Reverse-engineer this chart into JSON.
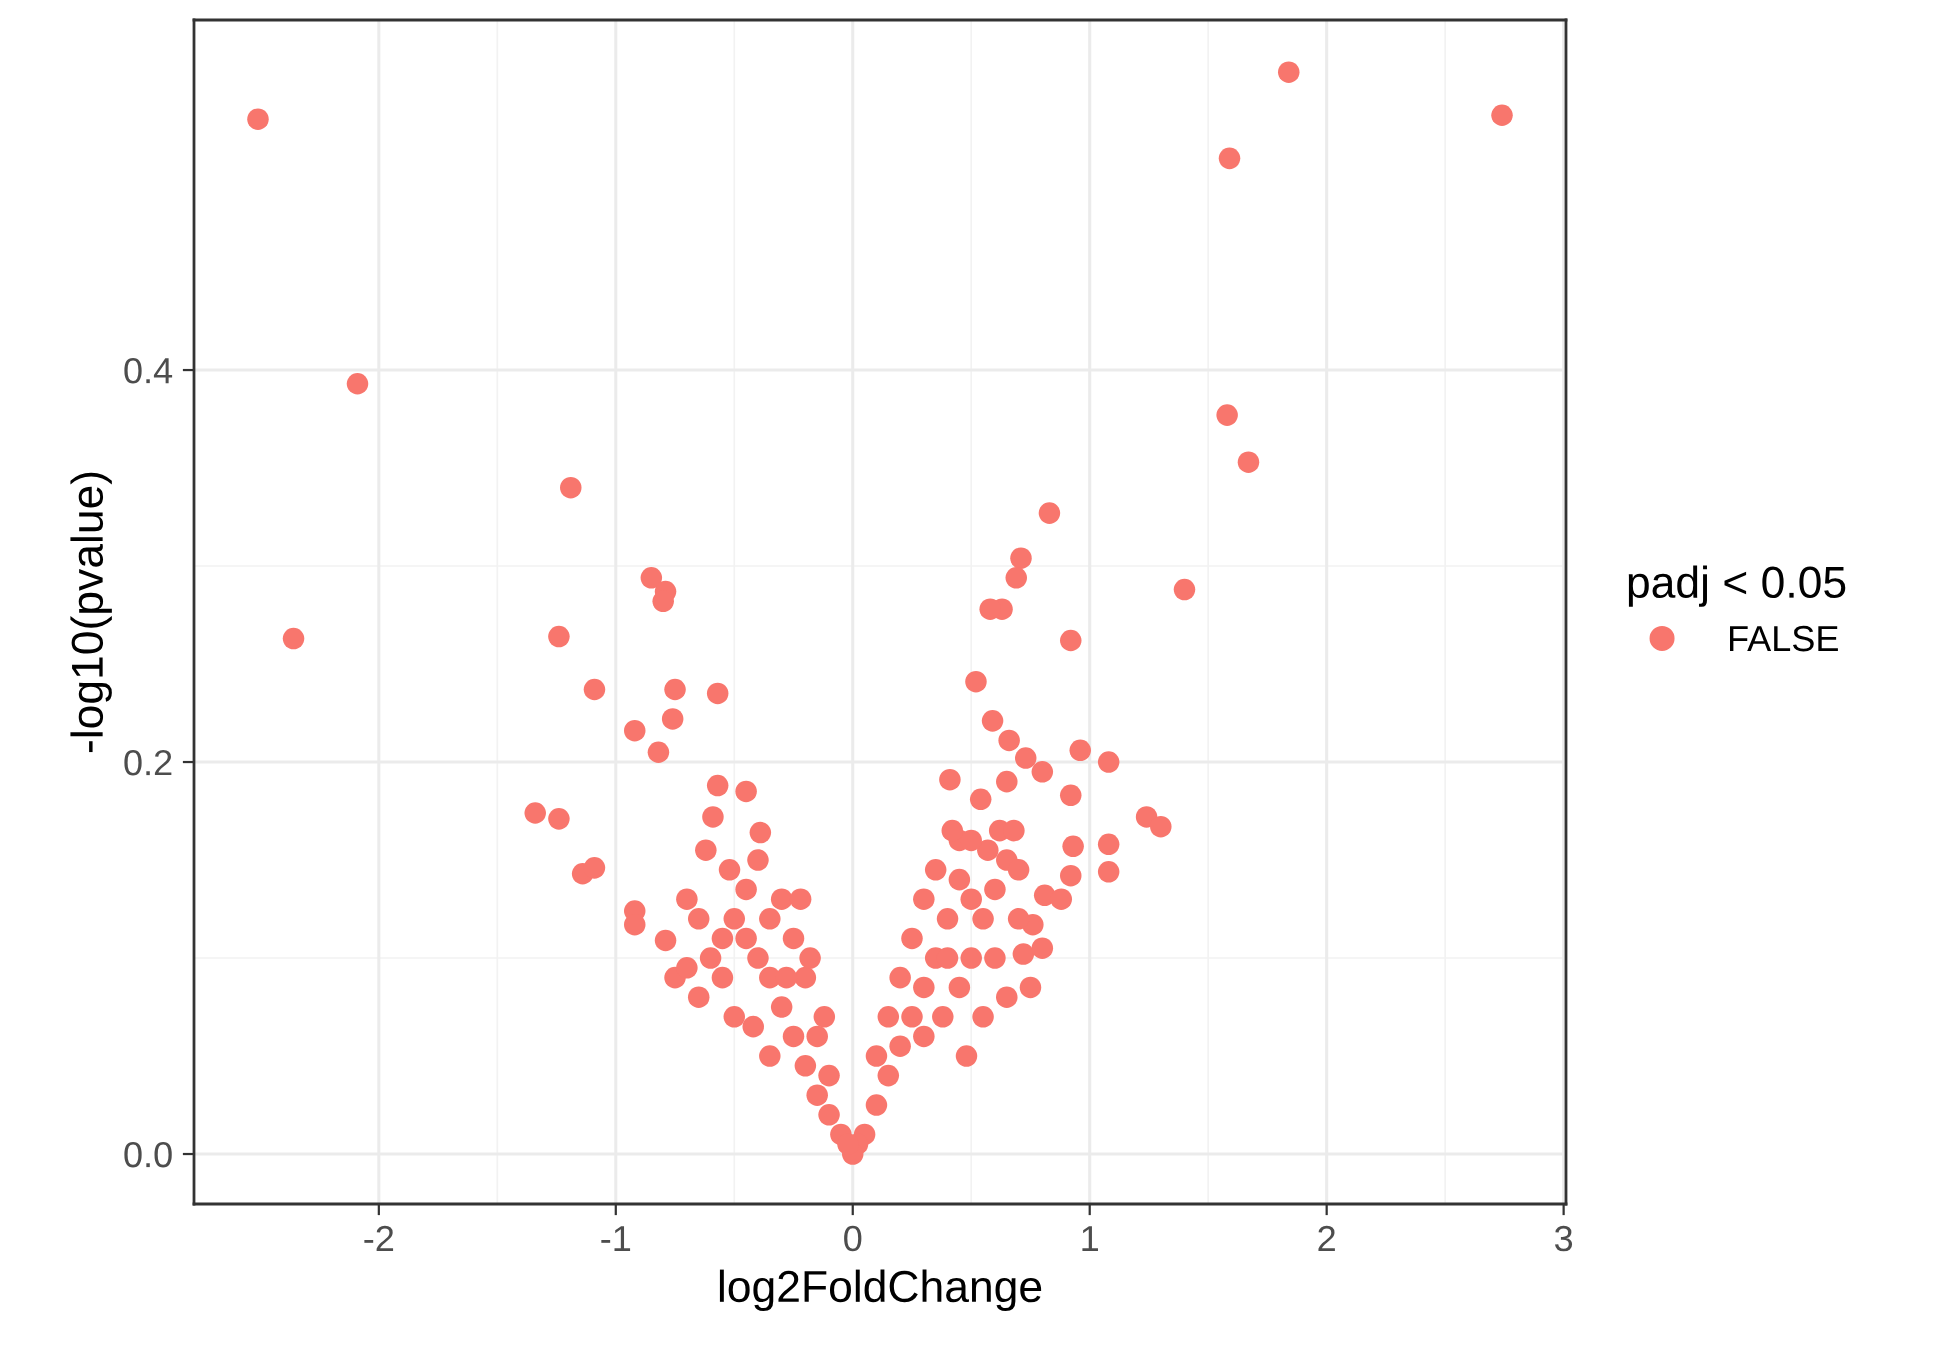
{
  "chart_data": {
    "type": "scatter",
    "xlabel": "log2FoldChange",
    "ylabel": "-log10(pvalue)",
    "legend_title": "padj < 0.05",
    "legend": "right",
    "grid": true,
    "marker": "circle",
    "xlim": [
      -2.78,
      3.01
    ],
    "xticks": [
      -2,
      -1,
      0,
      1,
      2,
      3
    ],
    "ylim": [
      -0.0255,
      0.5786
    ],
    "yticks": [
      {
        "value": 0,
        "label": "0.0"
      },
      0.2,
      0.4
    ],
    "series": [
      {
        "name": "FALSE",
        "color": "#f8766d",
        "x": [
          -2.51,
          -2.09,
          -2.36,
          -1.19,
          1.59,
          1.84,
          2.74,
          1.58,
          1.67,
          1.4,
          0.83,
          0.71,
          0.69,
          0.63,
          0.58,
          0.92,
          0.52,
          -0.85,
          -0.79,
          -0.8,
          -1.24,
          -1.09,
          -0.75,
          -0.57,
          -0.76,
          -0.92,
          -0.82,
          -1.34,
          -1.24,
          -1.14,
          -1.09,
          -0.57,
          -0.45,
          -0.59,
          -0.39,
          -0.92,
          -0.92,
          -0.79,
          1.08,
          0.96,
          1.08,
          1.08,
          1.24,
          1.3,
          0.59,
          0.66,
          0.73,
          0.8,
          0.65,
          0.41,
          0.54,
          0.92,
          0.93,
          0.92,
          0.81,
          0.88,
          0.76,
          0.72,
          0.45,
          0.62,
          0.68,
          0.57,
          -0.05,
          -0.1,
          -0.15,
          -0.2,
          -0.25,
          -0.3,
          -0.35,
          -0.4,
          -0.45,
          -0.5,
          -0.2,
          -0.25,
          -0.3,
          -0.35,
          -0.45,
          -0.55,
          -0.6,
          -0.65,
          -0.7,
          -0.5,
          -0.42,
          -0.35,
          -0.15,
          -0.1,
          -0.12,
          -0.18,
          -0.22,
          -0.4,
          -0.52,
          -0.62,
          -0.28,
          -0.55,
          -0.65,
          -0.75,
          -0.7,
          0.05,
          0.1,
          0.15,
          0.2,
          0.25,
          0.3,
          0.35,
          0.4,
          0.45,
          0.5,
          0.1,
          0.15,
          0.2,
          0.25,
          0.3,
          0.35,
          0.4,
          0.45,
          0.5,
          0.55,
          0.6,
          0.65,
          0.6,
          0.7,
          0.75,
          0.65,
          0.5,
          0.42,
          0.38,
          0.3,
          0.55,
          0.7,
          0.8,
          0.48,
          0.02,
          0,
          -0.02
        ],
        "values": [
          0.528,
          0.393,
          0.263,
          0.34,
          0.508,
          0.552,
          0.53,
          0.377,
          0.353,
          0.288,
          0.327,
          0.304,
          0.294,
          0.278,
          0.278,
          0.262,
          0.241,
          0.294,
          0.287,
          0.282,
          0.264,
          0.237,
          0.237,
          0.235,
          0.222,
          0.216,
          0.205,
          0.174,
          0.171,
          0.143,
          0.146,
          0.188,
          0.185,
          0.172,
          0.164,
          0.124,
          0.117,
          0.109,
          0.2,
          0.206,
          0.158,
          0.144,
          0.172,
          0.167,
          0.221,
          0.211,
          0.202,
          0.195,
          0.19,
          0.191,
          0.181,
          0.183,
          0.157,
          0.142,
          0.132,
          0.13,
          0.117,
          0.102,
          0.16,
          0.165,
          0.165,
          0.155,
          0.01,
          0.02,
          0.03,
          0.045,
          0.06,
          0.075,
          0.09,
          0.1,
          0.11,
          0.12,
          0.09,
          0.11,
          0.13,
          0.12,
          0.135,
          0.09,
          0.1,
          0.12,
          0.13,
          0.07,
          0.065,
          0.05,
          0.06,
          0.04,
          0.07,
          0.1,
          0.13,
          0.15,
          0.145,
          0.155,
          0.09,
          0.11,
          0.08,
          0.09,
          0.095,
          0.01,
          0.025,
          0.04,
          0.055,
          0.07,
          0.085,
          0.1,
          0.12,
          0.14,
          0.16,
          0.05,
          0.07,
          0.09,
          0.11,
          0.13,
          0.145,
          0.1,
          0.085,
          0.1,
          0.12,
          0.1,
          0.08,
          0.135,
          0.12,
          0.085,
          0.15,
          0.13,
          0.165,
          0.07,
          0.06,
          0.07,
          0.145,
          0.105,
          0.05,
          0.005,
          0,
          0.005
        ]
      }
    ]
  }
}
